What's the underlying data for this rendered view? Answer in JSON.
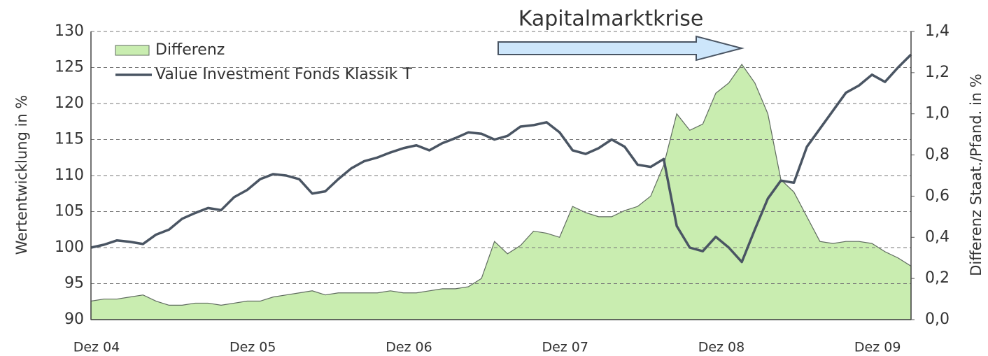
{
  "chart_data": {
    "type": "line",
    "annotation": "Kapitalmarktkrise",
    "y_label": "Wertentwicklung in %",
    "y2_label": "Differenz Staat./Pfand. in %",
    "categories": [
      "Dez 04",
      null,
      null,
      null,
      null,
      null,
      null,
      null,
      null,
      null,
      null,
      null,
      "Dez 05",
      null,
      null,
      null,
      null,
      null,
      null,
      null,
      null,
      null,
      null,
      null,
      "Dez 06",
      null,
      null,
      null,
      null,
      null,
      null,
      null,
      null,
      null,
      null,
      null,
      "Dez 07",
      null,
      null,
      null,
      null,
      null,
      null,
      null,
      null,
      null,
      null,
      null,
      "Dez 08",
      null,
      null,
      null,
      null,
      null,
      null,
      null,
      null,
      null,
      null,
      null,
      "Dez 09",
      null,
      null,
      null
    ],
    "series": [
      {
        "name": "Differenz",
        "type": "area",
        "axis": "y2",
        "color": "#c9edb0",
        "stroke": "#5f6b5f",
        "values": [
          0.09,
          0.1,
          0.1,
          0.11,
          0.12,
          0.09,
          0.07,
          0.07,
          0.08,
          0.08,
          0.07,
          0.08,
          0.09,
          0.09,
          0.11,
          0.12,
          0.13,
          0.14,
          0.12,
          0.13,
          0.13,
          0.13,
          0.13,
          0.14,
          0.13,
          0.13,
          0.14,
          0.15,
          0.15,
          0.16,
          0.2,
          0.38,
          0.32,
          0.36,
          0.43,
          0.42,
          0.4,
          0.55,
          0.52,
          0.5,
          0.5,
          0.53,
          0.55,
          0.6,
          0.75,
          1.0,
          0.92,
          0.95,
          1.1,
          1.15,
          1.24,
          1.15,
          1.0,
          0.68,
          0.62,
          0.5,
          0.38,
          0.37,
          0.38,
          0.38,
          0.37,
          0.33,
          0.3,
          0.26
        ]
      },
      {
        "name": "Value Investment Fonds Klassik T",
        "type": "line",
        "color": "#4a5563",
        "values": [
          100,
          100.4,
          101,
          100.8,
          100.5,
          101.8,
          102.5,
          104,
          104.8,
          105.5,
          105.2,
          107,
          108,
          109.5,
          110.2,
          110,
          109.5,
          107.5,
          107.8,
          109.5,
          111,
          112,
          112.5,
          113.2,
          113.8,
          114.2,
          113.5,
          114.5,
          115.2,
          116,
          115.8,
          115,
          115.5,
          116.8,
          117,
          117.4,
          116,
          113.5,
          113,
          113.8,
          115,
          114,
          111.5,
          111.2,
          112.3,
          103,
          100,
          99.5,
          101.5,
          100,
          98,
          102.5,
          106.8,
          109.3,
          109,
          114,
          116.5,
          119,
          121.5,
          122.5,
          124,
          123,
          125,
          126.8
        ]
      }
    ],
    "ylim": [
      90,
      130
    ],
    "yticks": [
      90,
      95,
      100,
      105,
      110,
      115,
      120,
      125,
      130
    ],
    "y2lim": [
      0,
      1.4
    ],
    "y2ticks": [
      {
        "value": 0,
        "label": "0,0"
      },
      {
        "value": 0.2,
        "label": "0,2"
      },
      {
        "value": 0.4,
        "label": "0,4"
      },
      {
        "value": 0.6,
        "label": "0,6"
      },
      {
        "value": 0.8,
        "label": "0,8"
      },
      {
        "value": 1.0,
        "label": "1,0"
      },
      {
        "value": 1.2,
        "label": "1,2"
      },
      {
        "value": 1.4,
        "label": "1,4"
      }
    ],
    "grid": true,
    "legend": "top-left"
  }
}
